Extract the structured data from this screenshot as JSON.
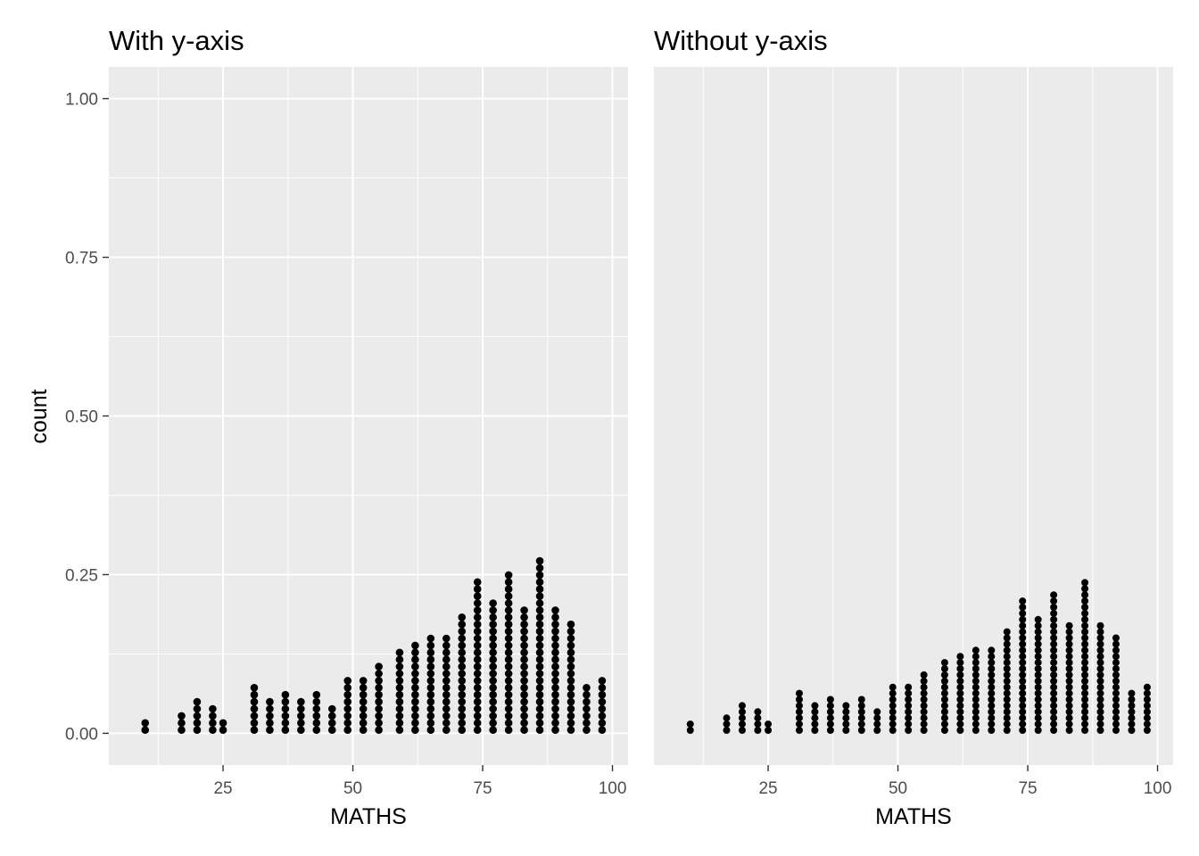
{
  "colors": {
    "panel_background": "#ebebeb",
    "grid_major": "#ffffff",
    "dot": "#000000",
    "tick_text": "#4d4d4d",
    "axis_ticks": "#333333"
  },
  "chart_data": [
    {
      "type": "dotplot",
      "title": "With y-axis",
      "xlabel": "MATHS",
      "ylabel": "count",
      "show_y_axis": true,
      "xlim": [
        3,
        103
      ],
      "ylim": [
        -0.05,
        1.05
      ],
      "x_ticks": [
        25,
        50,
        75,
        100
      ],
      "x_tick_labels": [
        "25",
        "50",
        "75",
        "100"
      ],
      "y_ticks": [
        0,
        0.25,
        0.5,
        0.75,
        1.0
      ],
      "y_tick_labels": [
        "0.00",
        "0.25",
        "0.50",
        "0.75",
        "1.00"
      ],
      "grid": true,
      "bins": [
        10,
        17,
        20,
        23,
        25,
        31,
        34,
        37,
        40,
        43,
        46,
        49,
        52,
        55,
        59,
        62,
        65,
        68,
        71,
        74,
        77,
        80,
        83,
        86,
        89,
        92,
        95,
        98
      ],
      "counts": [
        2,
        3,
        5,
        4,
        2,
        7,
        5,
        6,
        5,
        6,
        4,
        8,
        8,
        10,
        12,
        13,
        14,
        14,
        17,
        22,
        19,
        23,
        18,
        25,
        18,
        16,
        7,
        8
      ]
    },
    {
      "type": "dotplot",
      "title": "Without y-axis",
      "xlabel": "MATHS",
      "ylabel": "",
      "show_y_axis": false,
      "xlim": [
        3,
        103
      ],
      "ylim": [
        -0.05,
        1.05
      ],
      "x_ticks": [
        25,
        50,
        75,
        100
      ],
      "x_tick_labels": [
        "25",
        "50",
        "75",
        "100"
      ],
      "grid": true,
      "bins": [
        10,
        17,
        20,
        23,
        25,
        31,
        34,
        37,
        40,
        43,
        46,
        49,
        52,
        55,
        59,
        62,
        65,
        68,
        71,
        74,
        77,
        80,
        83,
        86,
        89,
        92,
        95,
        98
      ],
      "counts": [
        2,
        3,
        5,
        4,
        2,
        7,
        5,
        6,
        5,
        6,
        4,
        8,
        8,
        10,
        12,
        13,
        14,
        14,
        17,
        22,
        19,
        23,
        18,
        25,
        18,
        16,
        7,
        8
      ]
    }
  ]
}
